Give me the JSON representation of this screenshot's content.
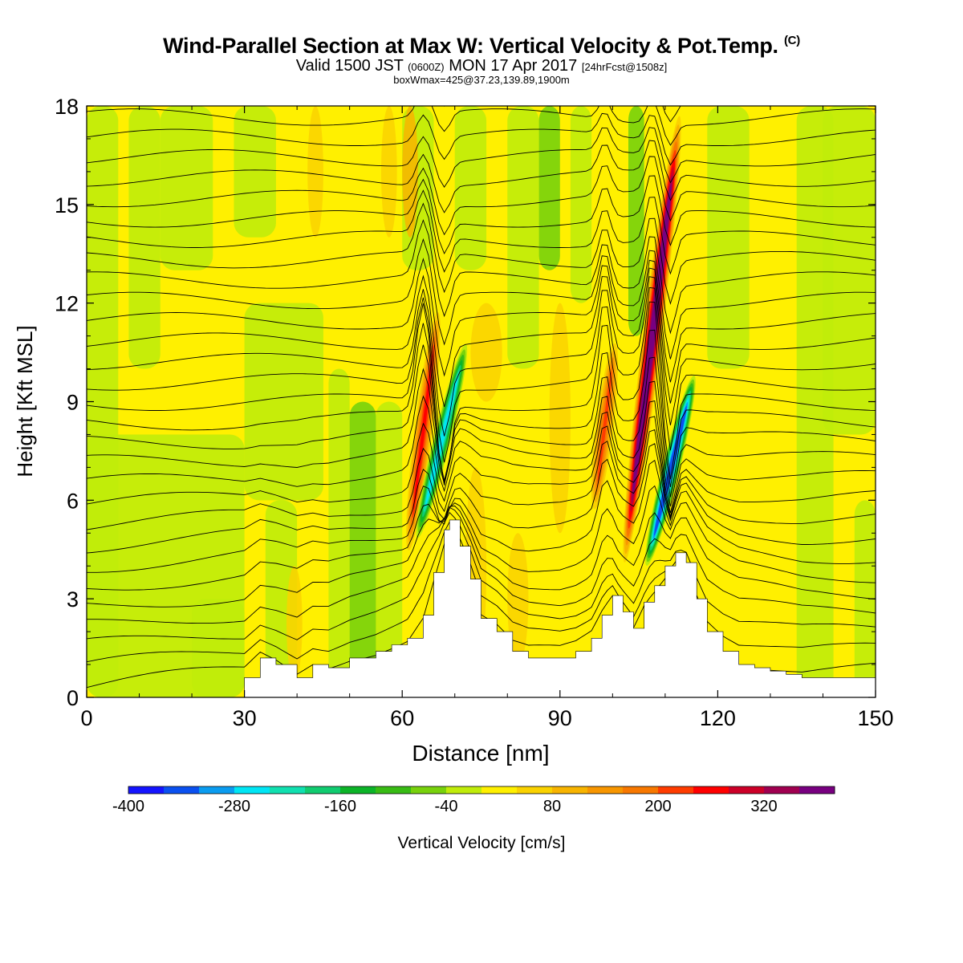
{
  "title": {
    "main": "Wind-Parallel Section at Max W: Vertical Velocity & Pot.Temp.",
    "tag": "(C)"
  },
  "subtitle": {
    "prefix": "Valid 1500 JST",
    "utc": "(0600Z)",
    "date": "MON 17 Apr 2017",
    "forecast": "[24hrFcst@1508z]"
  },
  "subtitle2": "boxWmax=425@37.23,139.89,1900m",
  "chart_data": {
    "type": "heatmap",
    "xlabel": "Distance [nm]",
    "ylabel": "Height [Kft MSL]",
    "xlim": [
      0,
      150
    ],
    "ylim": [
      0,
      18
    ],
    "x_ticks": [
      "0",
      "30",
      "60",
      "90",
      "120",
      "150"
    ],
    "y_ticks": [
      "0",
      "3",
      "6",
      "9",
      "12",
      "15",
      "18"
    ],
    "background_value_range": [
      -40,
      40
    ],
    "terrain": {
      "x": [
        0,
        30,
        33,
        36,
        40,
        43,
        46,
        50,
        55,
        58,
        61,
        64,
        66,
        68,
        69,
        71,
        73,
        75,
        78,
        81,
        84,
        87,
        90,
        93,
        96,
        98,
        100,
        102,
        104,
        106,
        108,
        110,
        112,
        114,
        116,
        118,
        121,
        124,
        127,
        130,
        133,
        136,
        140,
        145,
        150
      ],
      "y": [
        0,
        0.6,
        1.2,
        1.0,
        0.6,
        1.0,
        0.9,
        1.2,
        1.4,
        1.6,
        1.8,
        2.5,
        3.8,
        5.1,
        5.4,
        4.6,
        3.6,
        2.4,
        2.0,
        1.4,
        1.2,
        1.2,
        1.2,
        1.4,
        1.8,
        2.5,
        3.1,
        2.6,
        2.1,
        2.9,
        3.4,
        4.0,
        4.4,
        4.1,
        3.0,
        2.0,
        1.4,
        1.0,
        0.9,
        0.8,
        0.7,
        0.6,
        0.6,
        0.6,
        0.6
      ]
    },
    "features": [
      {
        "kind": "updraft",
        "x_center": 64,
        "z_top": 12,
        "z_bottom": 4.2,
        "w_max": 240
      },
      {
        "kind": "downdraft",
        "x_center": 67.5,
        "z_top": 11,
        "z_bottom": 4.6,
        "w_min": -300
      },
      {
        "kind": "updraft",
        "x_center": 98.5,
        "z_top": 11,
        "z_bottom": 5.5,
        "w_max": 200
      },
      {
        "kind": "updraft",
        "x_center": 107.5,
        "z_top": 18,
        "z_bottom": 3.8,
        "w_max": 420
      },
      {
        "kind": "downdraft",
        "x_center": 111,
        "z_top": 10,
        "z_bottom": 3.8,
        "w_min": -400
      }
    ],
    "contours": {
      "variable": "Potential Temperature",
      "unit": "C",
      "interval": 2
    },
    "colorbar": {
      "label": "Vertical Velocity [cm/s]",
      "tick_labels": [
        "-400",
        "-280",
        "-160",
        "-40",
        "80",
        "200",
        "320"
      ],
      "levels": [
        -400,
        -360,
        -320,
        -280,
        -240,
        -200,
        -160,
        -120,
        -80,
        -40,
        0,
        40,
        80,
        120,
        160,
        200,
        240,
        280,
        320,
        360,
        400
      ],
      "colors": [
        "#1414ff",
        "#0a50f0",
        "#0a9cf0",
        "#00e6f5",
        "#10e0b0",
        "#10cc70",
        "#0cb428",
        "#38bc14",
        "#78d20c",
        "#c0ec0a",
        "#fff000",
        "#fad200",
        "#f8b400",
        "#f89600",
        "#f87800",
        "#ff3c00",
        "#ff0000",
        "#cc0028",
        "#a00050",
        "#780080"
      ]
    }
  }
}
